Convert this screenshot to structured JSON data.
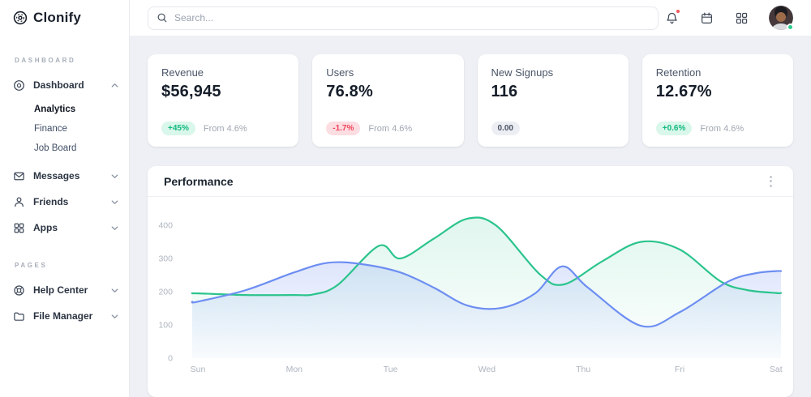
{
  "brand": {
    "name": "Clonify"
  },
  "topbar": {
    "search_placeholder": "Search..."
  },
  "sidebar": {
    "sections": {
      "dashboard": "DASHBOARD",
      "pages": "PAGES"
    },
    "items": {
      "dashboard": "Dashboard",
      "analytics": "Analytics",
      "finance": "Finance",
      "job_board": "Job Board",
      "messages": "Messages",
      "friends": "Friends",
      "apps": "Apps",
      "help_center": "Help Center",
      "file_manager": "File Manager"
    }
  },
  "stats": [
    {
      "title": "Revenue",
      "value": "$56,945",
      "badge": "+45%",
      "badge_tone": "positive",
      "note": "From 4.6%"
    },
    {
      "title": "Users",
      "value": "76.8%",
      "badge": "-1.7%",
      "badge_tone": "negative",
      "note": "From 4.6%"
    },
    {
      "title": "New Signups",
      "value": "116",
      "badge": "0.00",
      "badge_tone": "neutral",
      "note": ""
    },
    {
      "title": "Retention",
      "value": "12.67%",
      "badge": "+0.6%",
      "badge_tone": "positive",
      "note": "From 4.6%"
    }
  ],
  "performance": {
    "title": "Performance"
  },
  "colors": {
    "positive": "#12b981",
    "positive_bg": "#d9f7ea",
    "negative": "#ef4358",
    "negative_bg": "#fcdde2",
    "neutral": "#4a5364",
    "neutral_bg": "#eceef3",
    "series_green": "#2bc48c",
    "series_blue": "#6d8ef2",
    "page_bg": "#eef0f5",
    "notification_dot": "#f25757",
    "online_dot": "#2ecc8e"
  },
  "chart_data": {
    "type": "area",
    "title": "Performance",
    "x_labels": [
      "Sun",
      "Mon",
      "Tue",
      "Wed",
      "Thu",
      "Fri",
      "Sat"
    ],
    "y_ticks": [
      0,
      100,
      200,
      300,
      400
    ],
    "ylim": [
      0,
      450
    ],
    "grid": false,
    "legend": "none",
    "series": [
      {
        "name": "green",
        "color": "#2bc48c",
        "fill_opacity_top": 0.15,
        "fill_opacity_bottom": 0.01,
        "points": [
          [
            0,
            195
          ],
          [
            0.5,
            190
          ],
          [
            1,
            190
          ],
          [
            1.2,
            192
          ],
          [
            1.45,
            220
          ],
          [
            1.88,
            338
          ],
          [
            2.1,
            300
          ],
          [
            2.45,
            360
          ],
          [
            2.8,
            420
          ],
          [
            3.1,
            398
          ],
          [
            3.55,
            252
          ],
          [
            3.8,
            222
          ],
          [
            4.2,
            292
          ],
          [
            4.6,
            350
          ],
          [
            5,
            327
          ],
          [
            5.42,
            232
          ],
          [
            5.7,
            205
          ],
          [
            6,
            196
          ]
        ]
      },
      {
        "name": "blue",
        "color": "#6d8ef2",
        "fill_opacity_top": 0.32,
        "fill_opacity_bottom": 0.03,
        "points": [
          [
            0,
            170
          ],
          [
            0.5,
            205
          ],
          [
            1,
            258
          ],
          [
            1.35,
            287
          ],
          [
            1.7,
            283
          ],
          [
            2.1,
            258
          ],
          [
            2.45,
            212
          ],
          [
            2.8,
            158
          ],
          [
            3.15,
            151
          ],
          [
            3.5,
            195
          ],
          [
            3.78,
            276
          ],
          [
            4.05,
            212
          ],
          [
            4.6,
            97
          ],
          [
            5,
            138
          ],
          [
            5.5,
            230
          ],
          [
            5.8,
            256
          ],
          [
            6,
            262
          ]
        ]
      }
    ]
  }
}
